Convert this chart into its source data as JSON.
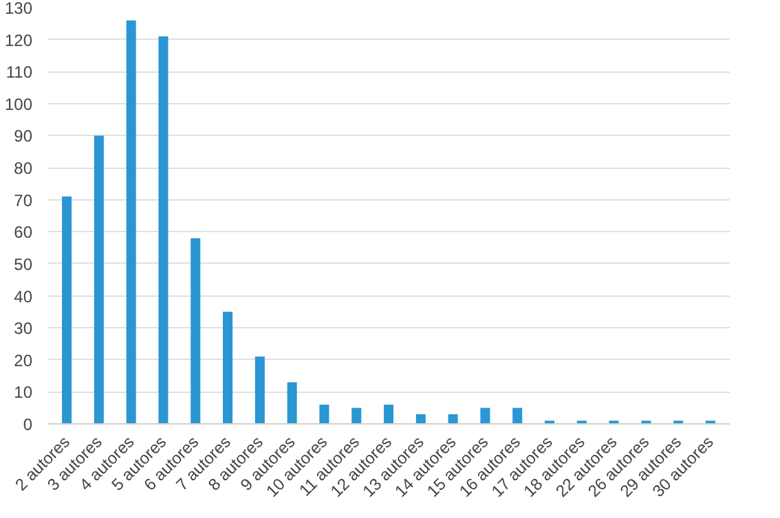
{
  "chart_data": {
    "type": "bar",
    "categories": [
      "2 autores",
      "3 autores",
      "4 autores",
      "5 autores",
      "6 autores",
      "7 autores",
      "8 autores",
      "9 autores",
      "10 autores",
      "11 autores",
      "12 autores",
      "13 autores",
      "14 autores",
      "15 autores",
      "16 autores",
      "17 autores",
      "18 autores",
      "22 autores",
      "26 autores",
      "29 autores",
      "30 autores"
    ],
    "values": [
      71,
      90,
      126,
      121,
      58,
      35,
      21,
      13,
      6,
      5,
      6,
      3,
      3,
      5,
      5,
      1,
      1,
      1,
      1,
      1,
      1
    ],
    "color": "#2a96d4",
    "ylim": [
      0,
      130
    ],
    "yticks": [
      0,
      10,
      20,
      30,
      40,
      50,
      60,
      70,
      80,
      90,
      100,
      110,
      120,
      130
    ],
    "grid": "y"
  }
}
